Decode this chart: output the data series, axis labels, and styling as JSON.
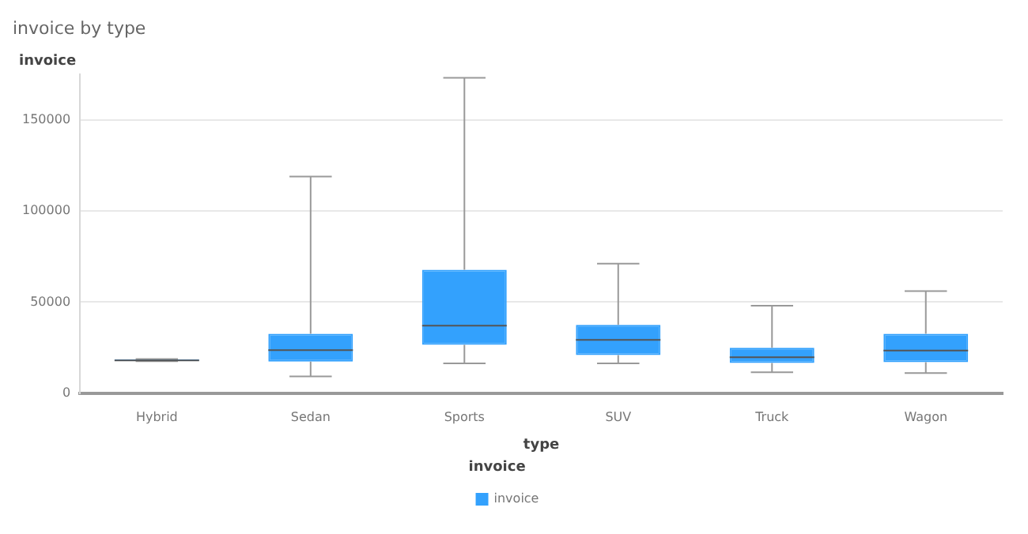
{
  "chart_data": {
    "type": "box",
    "title": "invoice by type",
    "xlabel": "type",
    "ylabel": "invoice",
    "legend_title": "invoice",
    "categories": [
      "Hybrid",
      "Sedan",
      "Sports",
      "SUV",
      "Truck",
      "Wagon"
    ],
    "series": [
      {
        "name": "invoice",
        "color": "#33a1fd",
        "boxes": [
          {
            "low": 17500,
            "q1": 17700,
            "median": 18000,
            "q3": 18500,
            "high": 18700
          },
          {
            "low": 9200,
            "q1": 17300,
            "median": 23600,
            "q3": 32600,
            "high": 119000
          },
          {
            "low": 16300,
            "q1": 26500,
            "median": 37000,
            "q3": 67700,
            "high": 173200
          },
          {
            "low": 16300,
            "q1": 20900,
            "median": 29200,
            "q3": 37500,
            "high": 71100
          },
          {
            "low": 11400,
            "q1": 16500,
            "median": 19700,
            "q3": 24900,
            "high": 48000
          },
          {
            "low": 11000,
            "q1": 17000,
            "median": 23400,
            "q3": 32600,
            "high": 56000
          }
        ]
      }
    ],
    "ylim": [
      0,
      175000
    ],
    "yticks": [
      0,
      50000,
      100000,
      150000
    ],
    "grid": "y",
    "legend": "bottom"
  }
}
